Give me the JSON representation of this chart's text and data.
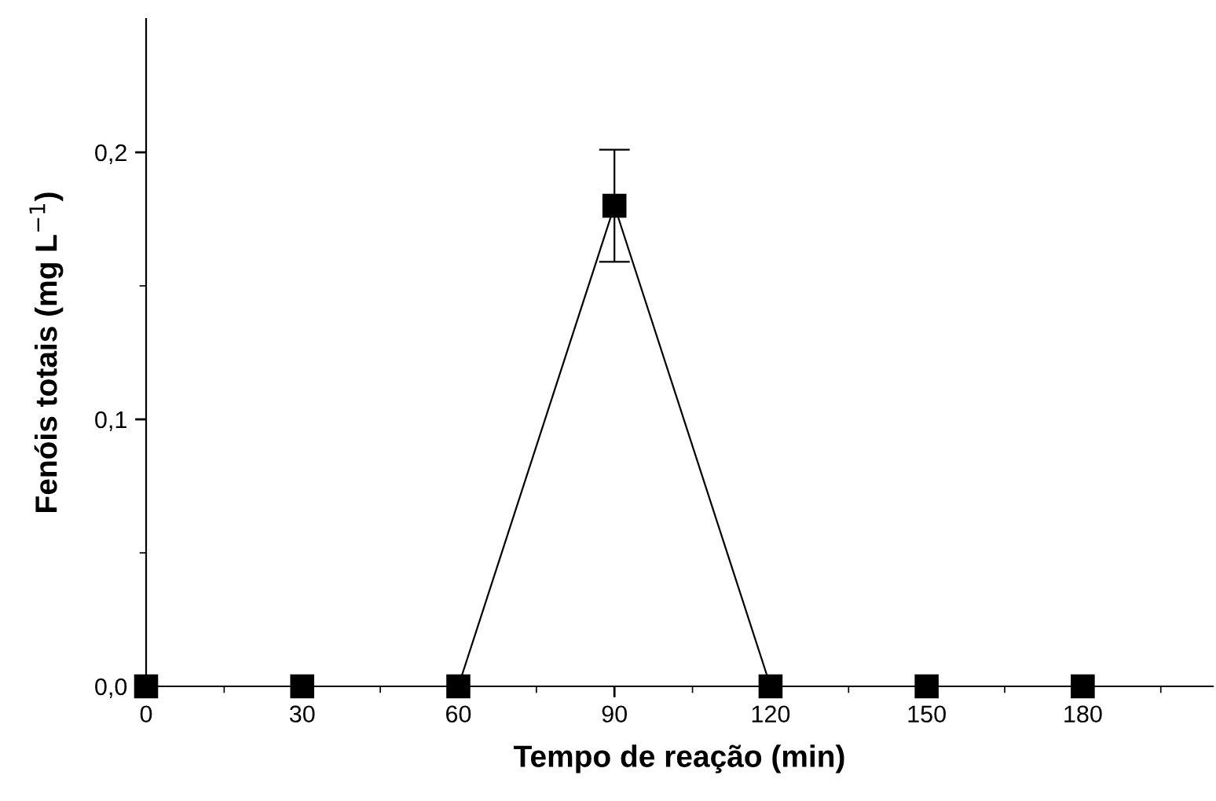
{
  "chart_data": {
    "type": "line",
    "xlabel": "Tempo de reação (min)",
    "ylabel": "Fenóis totais (mg L$^{−1}$)",
    "x": [
      0,
      30,
      60,
      90,
      120,
      150,
      180
    ],
    "series": [
      {
        "color": "#000000",
        "values": [
          0,
          0,
          0,
          0.18,
          0,
          0,
          0
        ],
        "errors": [
          null,
          null,
          null,
          0.021,
          null,
          null,
          null
        ]
      }
    ],
    "marker": "square",
    "line_style": "solid",
    "grid": false,
    "legend": false,
    "xlim": [
      0,
      205
    ],
    "xticks": [
      0,
      30,
      60,
      90,
      120,
      150,
      180
    ],
    "ylim": [
      0,
      0.25
    ],
    "yticks": [
      {
        "value": 0,
        "label": "0,0"
      },
      {
        "value": 0.1,
        "label": "0,1"
      },
      {
        "value": 0.2,
        "label": "0,2"
      }
    ]
  }
}
